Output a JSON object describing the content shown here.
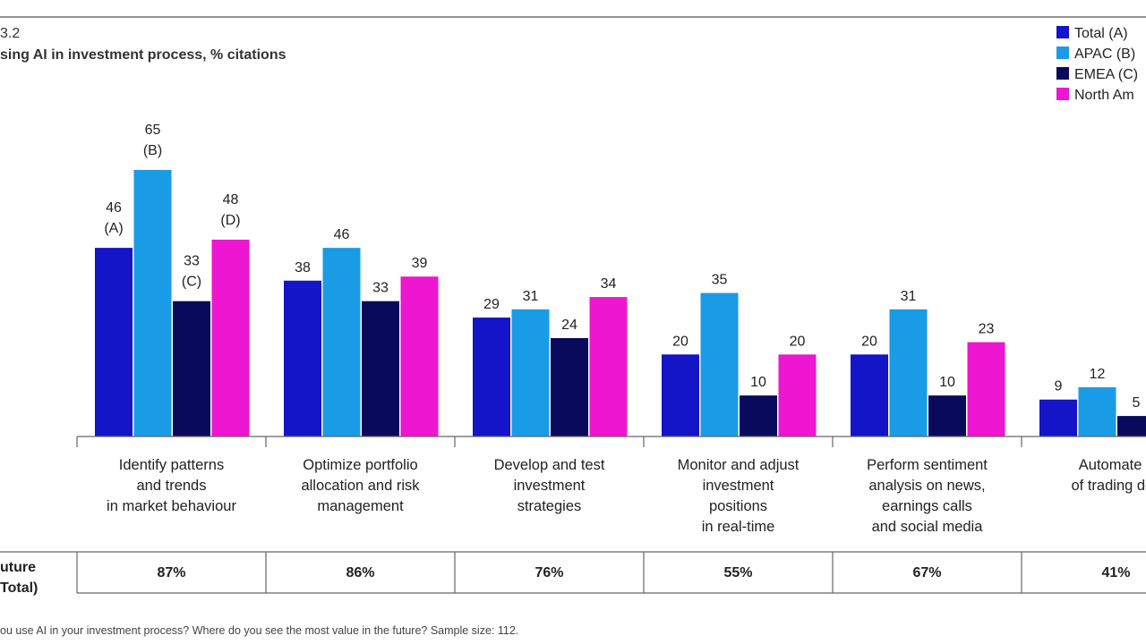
{
  "figure": {
    "label": "3.2",
    "subtitle": "sing AI in investment process, % citations",
    "footnote": "ou use AI in your investment process? Where do you see the most value in the future? Sample size: 112."
  },
  "chart_data": {
    "type": "bar",
    "ylim": [
      0,
      70
    ],
    "legend_position": "top-right",
    "categories": [
      [
        "Identify patterns",
        "and trends",
        "in market behaviour"
      ],
      [
        "Optimize portfolio",
        "allocation and risk",
        "management"
      ],
      [
        "Develop and test",
        "investment",
        "strategies"
      ],
      [
        "Monitor and adjust",
        "investment",
        "positions",
        "in real-time"
      ],
      [
        "Perform sentiment",
        "analysis on news,",
        "earnings calls",
        "and social media"
      ],
      [
        "Automate ti",
        "of trading dec"
      ]
    ],
    "series": [
      {
        "name": "Total (A)",
        "color": "#1414c8",
        "values": [
          46,
          38,
          29,
          20,
          20,
          9
        ],
        "marks": [
          "(A)",
          "",
          "",
          "",
          "",
          ""
        ]
      },
      {
        "name": "APAC (B)",
        "color": "#1a9be6",
        "values": [
          65,
          46,
          31,
          35,
          31,
          12
        ],
        "marks": [
          "(B)",
          "",
          "",
          "",
          "",
          ""
        ]
      },
      {
        "name": "EMEA (C)",
        "color": "#0a0a5c",
        "values": [
          33,
          33,
          24,
          10,
          10,
          5
        ],
        "marks": [
          "(C)",
          "",
          "",
          "",
          "",
          ""
        ]
      },
      {
        "name": "North Am",
        "color": "#ee16d0",
        "values": [
          48,
          39,
          34,
          20,
          23,
          null
        ],
        "marks": [
          "(D)",
          "",
          "",
          "",
          "",
          ""
        ]
      }
    ],
    "future_row": {
      "label": [
        "uture",
        "Total)"
      ],
      "values": [
        "87%",
        "86%",
        "76%",
        "55%",
        "67%",
        "41%"
      ]
    }
  }
}
